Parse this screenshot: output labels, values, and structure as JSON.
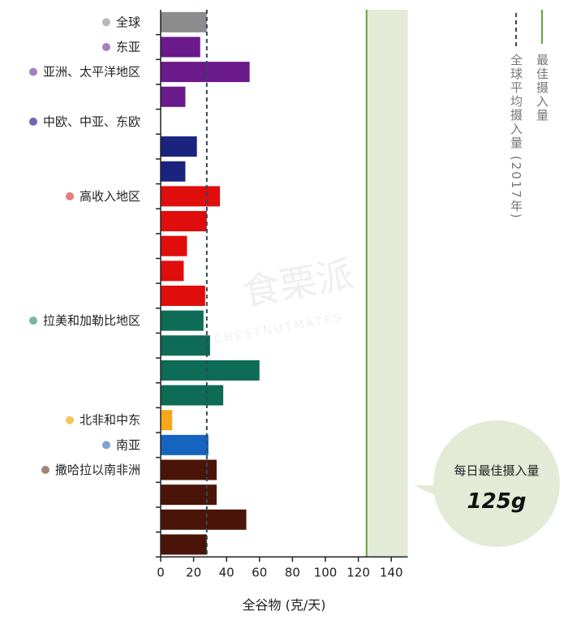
{
  "chart_data": {
    "type": "bar",
    "orientation": "horizontal",
    "xlabel": "全谷物 (克/天)",
    "xlim": [
      0,
      150
    ],
    "xticks": [
      0,
      20,
      40,
      60,
      80,
      100,
      120,
      140
    ],
    "reference_lines": {
      "global_avg": {
        "value": 28,
        "label": "全球平均摄入量 (2017年)"
      },
      "optimal": {
        "value": 125,
        "label": "最佳摄入量"
      }
    },
    "callout": {
      "title": "每日最佳摄入量",
      "value": "125g"
    },
    "watermark": {
      "cn": "食栗派",
      "en": "CHESTNUTMATES"
    },
    "groups": [
      {
        "label": "全球",
        "dot": "#b8b8b8",
        "color": "#8c8c8c",
        "values": [
          28
        ]
      },
      {
        "label": "东亚",
        "dot": "#a77fbf",
        "color": "#6a1a8a",
        "values": [
          24
        ]
      },
      {
        "label": "亚洲、太平洋地区",
        "dot": "#a77fbf",
        "color": "#6a1a8a",
        "values": [
          54,
          15
        ]
      },
      {
        "label": "中欧、中亚、东欧",
        "dot": "#6a6aae",
        "color": "#1a237e",
        "values": [
          0,
          22,
          15
        ]
      },
      {
        "label": "高收入地区",
        "dot": "#e87a7a",
        "color": "#e00d0d",
        "values": [
          36,
          28,
          16,
          14,
          27
        ]
      },
      {
        "label": "拉美和加勒比地区",
        "dot": "#7ab5a8",
        "color": "#0e6b56",
        "values": [
          26,
          30,
          60,
          38
        ]
      },
      {
        "label": "北非和中东",
        "dot": "#f5c45e",
        "color": "#f5a81c",
        "values": [
          7
        ]
      },
      {
        "label": "南亚",
        "dot": "#7da4d9",
        "color": "#1565c0",
        "values": [
          29
        ]
      },
      {
        "label": "撒哈拉以南非洲",
        "dot": "#a28574",
        "color": "#4a1508",
        "values": [
          34,
          34,
          52,
          28
        ]
      }
    ]
  }
}
